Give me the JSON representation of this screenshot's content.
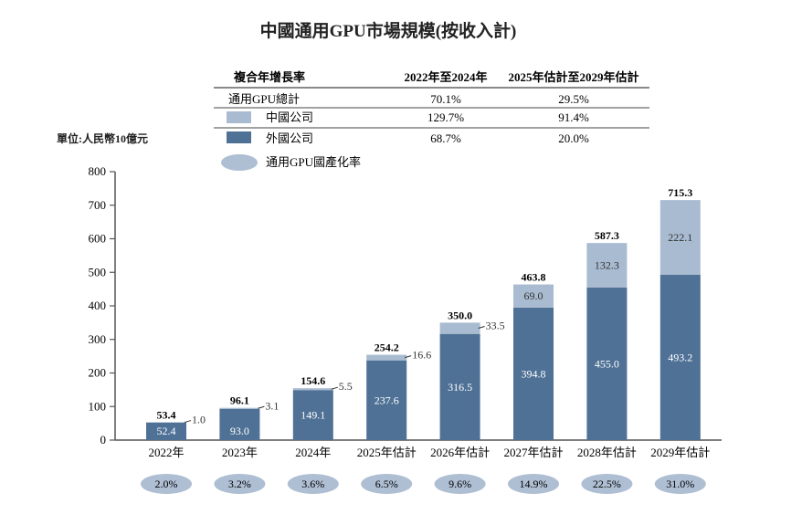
{
  "colors": {
    "china": "#4f7196",
    "foreign_light": "#a9bbd1",
    "ellipse": "#aebed3",
    "axis": "#555555"
  },
  "chart_data": {
    "type": "bar",
    "stacked": true,
    "title": "中國通用GPU市場規模(按收入計)",
    "unit": "單位:人民幣10億元",
    "ylim": [
      0,
      800
    ],
    "yticks": [
      0,
      100,
      200,
      300,
      400,
      500,
      600,
      700,
      800
    ],
    "grid": false,
    "categories": [
      "2022年",
      "2023年",
      "2024年",
      "2025年估計",
      "2026年估計",
      "2027年估計",
      "2028年估計",
      "2029年估計"
    ],
    "series": [
      {
        "name": "外國公司",
        "values": [
          52.4,
          93.0,
          149.1,
          237.6,
          316.5,
          394.8,
          455.0,
          493.2
        ]
      },
      {
        "name": "中國公司",
        "values": [
          1.0,
          3.1,
          5.5,
          16.6,
          33.5,
          69.0,
          132.3,
          222.1
        ]
      }
    ],
    "totals": [
      "53.4",
      "96.1",
      "154.6",
      "254.2",
      "350.0",
      "463.8",
      "587.3",
      "715.3"
    ],
    "foreign_labels": [
      "52.4",
      "93.0",
      "149.1",
      "237.6",
      "316.5",
      "394.8",
      "455.0",
      "493.2"
    ],
    "china_labels": [
      "1.0",
      "3.1",
      "5.5",
      "16.6",
      "33.5",
      "69.0",
      "132.3",
      "222.1"
    ],
    "localization_rate": {
      "name": "通用GPU國產化率",
      "values": [
        "2.0%",
        "3.2%",
        "3.6%",
        "6.5%",
        "9.6%",
        "14.9%",
        "22.5%",
        "31.0%"
      ]
    },
    "cagr_table": {
      "header": [
        "複合年增長率",
        "2022年至2024年",
        "2025年估計至2029年估計"
      ],
      "rows": [
        {
          "label": "通用GPU總計",
          "v1": "70.1%",
          "v2": "29.5%"
        },
        {
          "label": "中國公司",
          "v1": "129.7%",
          "v2": "91.4%"
        },
        {
          "label": "外國公司",
          "v1": "68.7%",
          "v2": "20.0%"
        }
      ]
    }
  }
}
